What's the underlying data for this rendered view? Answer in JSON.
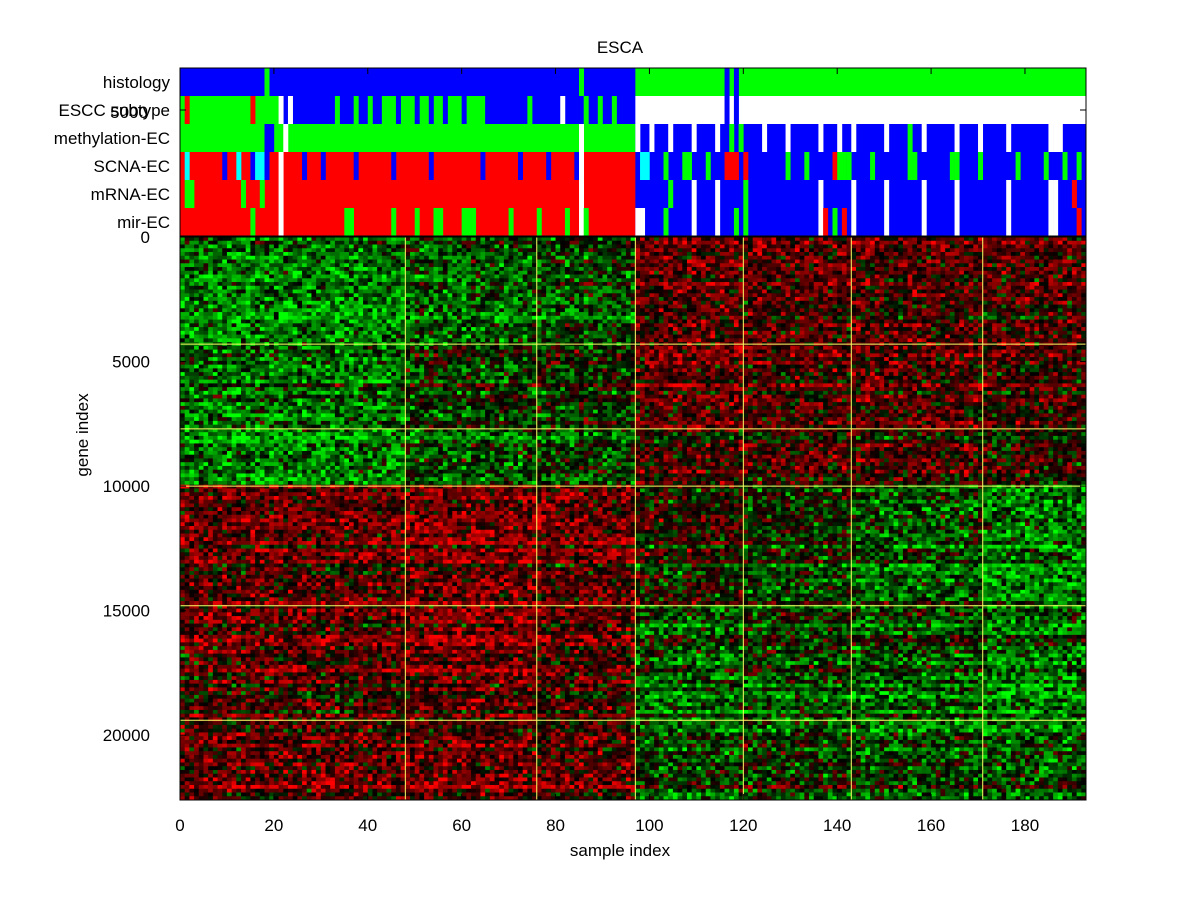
{
  "chart_data": {
    "type": "heatmap",
    "title": "ESCA",
    "xlabel": "sample index",
    "ylabel": "gene index",
    "xlim": [
      0,
      193
    ],
    "ylim": [
      0,
      22600
    ],
    "y_reversed": true,
    "grid": false,
    "x_ticks": [
      0,
      20,
      40,
      60,
      80,
      100,
      120,
      140,
      160,
      180
    ],
    "y_ticks": [
      0,
      5000,
      10000,
      15000,
      20000
    ],
    "stray_tick_label": "5000",
    "cluster_boundaries": [
      48,
      76,
      97,
      120,
      143,
      171
    ],
    "gene_boundaries": [
      4300,
      7700,
      10000,
      14800,
      19400
    ],
    "annotation_tracks": [
      {
        "name": "histology",
        "segments": [
          {
            "from": 0,
            "to": 97,
            "color": "#0000ff"
          },
          {
            "from": 97,
            "to": 193,
            "color": "#00ff00"
          }
        ],
        "specks": [
          {
            "at": 18.5,
            "color": "#00ff00"
          },
          {
            "at": 85.5,
            "color": "#00ff00"
          },
          {
            "at": 116.5,
            "color": "#0000ff"
          },
          {
            "at": 118.5,
            "color": "#0000ff"
          }
        ]
      },
      {
        "name": "ESCC subtype",
        "segments": [
          {
            "from": 0,
            "to": 16,
            "color": "#00ff00"
          },
          {
            "from": 16,
            "to": 22,
            "color": "#00ff00"
          },
          {
            "from": 22,
            "to": 34,
            "color": "#0000ff"
          },
          {
            "from": 34,
            "to": 44,
            "color": "#0000ff"
          },
          {
            "from": 44,
            "to": 65,
            "color": "#00ff00"
          },
          {
            "from": 65,
            "to": 97,
            "color": "#0000ff"
          },
          {
            "from": 97,
            "to": 193,
            "color": "#ffffff"
          }
        ],
        "specks": [
          {
            "at": 1.5,
            "color": "#ff0000"
          },
          {
            "at": 15.5,
            "color": "#ff0000"
          },
          {
            "at": 19.5,
            "color": "#00ff00"
          },
          {
            "at": 21.5,
            "color": "#ffffff"
          },
          {
            "at": 23.5,
            "color": "#ffffff"
          },
          {
            "at": 33.5,
            "color": "#00ff00"
          },
          {
            "at": 37.5,
            "color": "#00ff00"
          },
          {
            "at": 40.5,
            "color": "#00ff00"
          },
          {
            "at": 43.5,
            "color": "#00ff00"
          },
          {
            "at": 46.5,
            "color": "#0000ff"
          },
          {
            "at": 50.5,
            "color": "#0000ff"
          },
          {
            "at": 53.5,
            "color": "#0000ff"
          },
          {
            "at": 56.5,
            "color": "#0000ff"
          },
          {
            "at": 60.5,
            "color": "#0000ff"
          },
          {
            "at": 74.5,
            "color": "#00ff00"
          },
          {
            "at": 81.5,
            "color": "#ffffff"
          },
          {
            "at": 86.5,
            "color": "#00ff00"
          },
          {
            "at": 89.5,
            "color": "#00ff00"
          },
          {
            "at": 92.5,
            "color": "#00ff00"
          },
          {
            "at": 116.5,
            "color": "#0000ff"
          },
          {
            "at": 118.5,
            "color": "#0000ff"
          }
        ]
      },
      {
        "name": "methylation-EC",
        "segments": [
          {
            "from": 0,
            "to": 97,
            "color": "#00ff00"
          },
          {
            "from": 97,
            "to": 193,
            "color": "#0000ff"
          }
        ],
        "specks": [
          {
            "at": 18.5,
            "color": "#0000ff"
          },
          {
            "at": 19.5,
            "color": "#0000ff"
          },
          {
            "at": 22.5,
            "color": "#ffffff"
          },
          {
            "at": 85.5,
            "color": "#ffffff"
          },
          {
            "at": 97.5,
            "color": "#ffffff"
          },
          {
            "at": 100.5,
            "color": "#ffffff"
          },
          {
            "at": 104.5,
            "color": "#ffffff"
          },
          {
            "at": 109.5,
            "color": "#ffffff"
          },
          {
            "at": 114.5,
            "color": "#ffffff"
          },
          {
            "at": 117.5,
            "color": "#00ff00"
          },
          {
            "at": 119.5,
            "color": "#00ff00"
          },
          {
            "at": 124.5,
            "color": "#ffffff"
          },
          {
            "at": 129.5,
            "color": "#ffffff"
          },
          {
            "at": 136.5,
            "color": "#ffffff"
          },
          {
            "at": 140.5,
            "color": "#ffffff"
          },
          {
            "at": 143.5,
            "color": "#ffffff"
          },
          {
            "at": 150.5,
            "color": "#ffffff"
          },
          {
            "at": 155.5,
            "color": "#00ff00"
          },
          {
            "at": 158.5,
            "color": "#ffffff"
          },
          {
            "at": 165.5,
            "color": "#ffffff"
          },
          {
            "at": 170.5,
            "color": "#ffffff"
          },
          {
            "at": 176.5,
            "color": "#ffffff"
          },
          {
            "at": 185.5,
            "color": "#ffffff"
          },
          {
            "at": 186.5,
            "color": "#ffffff"
          },
          {
            "at": 187.5,
            "color": "#ffffff"
          }
        ]
      },
      {
        "name": "SCNA-EC",
        "segments": [
          {
            "from": 0,
            "to": 97,
            "color": "#ff0000"
          },
          {
            "from": 97,
            "to": 193,
            "color": "#0000ff"
          }
        ],
        "specks": [
          {
            "at": 1.5,
            "color": "#00ffff"
          },
          {
            "at": 9.5,
            "color": "#0000ff"
          },
          {
            "at": 12.5,
            "color": "#00ffff"
          },
          {
            "at": 15.5,
            "color": "#0000ff"
          },
          {
            "at": 16.5,
            "color": "#00ffff"
          },
          {
            "at": 17.5,
            "color": "#00ffff"
          },
          {
            "at": 18.5,
            "color": "#0000ff"
          },
          {
            "at": 21.5,
            "color": "#ffffff"
          },
          {
            "at": 26.5,
            "color": "#0000ff"
          },
          {
            "at": 30.5,
            "color": "#0000ff"
          },
          {
            "at": 37.5,
            "color": "#0000ff"
          },
          {
            "at": 45.5,
            "color": "#0000ff"
          },
          {
            "at": 53.5,
            "color": "#0000ff"
          },
          {
            "at": 64.5,
            "color": "#0000ff"
          },
          {
            "at": 72.5,
            "color": "#0000ff"
          },
          {
            "at": 78.5,
            "color": "#0000ff"
          },
          {
            "at": 84.5,
            "color": "#0000ff"
          },
          {
            "at": 85.5,
            "color": "#ffffff"
          },
          {
            "at": 98.5,
            "color": "#00ffff"
          },
          {
            "at": 99.5,
            "color": "#00ffff"
          },
          {
            "at": 103.5,
            "color": "#00ff00"
          },
          {
            "at": 107.5,
            "color": "#00ff00"
          },
          {
            "at": 108.5,
            "color": "#00ff00"
          },
          {
            "at": 112.5,
            "color": "#00ff00"
          },
          {
            "at": 116.5,
            "color": "#ff0000"
          },
          {
            "at": 117.5,
            "color": "#ff0000"
          },
          {
            "at": 118.5,
            "color": "#ff0000"
          },
          {
            "at": 120.5,
            "color": "#ff0000"
          },
          {
            "at": 129.5,
            "color": "#00ff00"
          },
          {
            "at": 133.5,
            "color": "#00ff00"
          },
          {
            "at": 139.5,
            "color": "#ff0000"
          },
          {
            "at": 140.5,
            "color": "#00ff00"
          },
          {
            "at": 141.5,
            "color": "#00ff00"
          },
          {
            "at": 142.5,
            "color": "#00ff00"
          },
          {
            "at": 147.5,
            "color": "#00ff00"
          },
          {
            "at": 155.5,
            "color": "#00ff00"
          },
          {
            "at": 156.5,
            "color": "#00ff00"
          },
          {
            "at": 164.5,
            "color": "#00ff00"
          },
          {
            "at": 165.5,
            "color": "#00ff00"
          },
          {
            "at": 170.5,
            "color": "#00ff00"
          },
          {
            "at": 178.5,
            "color": "#00ff00"
          },
          {
            "at": 184.5,
            "color": "#00ff00"
          },
          {
            "at": 188.5,
            "color": "#00ff00"
          },
          {
            "at": 191.5,
            "color": "#00ff00"
          }
        ]
      },
      {
        "name": "mRNA-EC",
        "segments": [
          {
            "from": 0,
            "to": 97,
            "color": "#ff0000"
          },
          {
            "from": 97,
            "to": 193,
            "color": "#0000ff"
          }
        ],
        "specks": [
          {
            "at": 1.5,
            "color": "#00ff00"
          },
          {
            "at": 2.5,
            "color": "#00ff00"
          },
          {
            "at": 13.5,
            "color": "#00ff00"
          },
          {
            "at": 17.5,
            "color": "#00ff00"
          },
          {
            "at": 21.5,
            "color": "#ffffff"
          },
          {
            "at": 85.5,
            "color": "#ffffff"
          },
          {
            "at": 104.5,
            "color": "#00ff00"
          },
          {
            "at": 109.5,
            "color": "#ffffff"
          },
          {
            "at": 114.5,
            "color": "#ffffff"
          },
          {
            "at": 120.5,
            "color": "#00ff00"
          },
          {
            "at": 136.5,
            "color": "#ffffff"
          },
          {
            "at": 143.5,
            "color": "#ffffff"
          },
          {
            "at": 150.5,
            "color": "#ffffff"
          },
          {
            "at": 158.5,
            "color": "#ffffff"
          },
          {
            "at": 165.5,
            "color": "#ffffff"
          },
          {
            "at": 176.5,
            "color": "#ffffff"
          },
          {
            "at": 185.5,
            "color": "#ffffff"
          },
          {
            "at": 186.5,
            "color": "#ffffff"
          },
          {
            "at": 190.5,
            "color": "#ff0000"
          }
        ]
      },
      {
        "name": "mir-EC",
        "segments": [
          {
            "from": 0,
            "to": 97,
            "color": "#ff0000"
          },
          {
            "from": 97,
            "to": 193,
            "color": "#0000ff"
          }
        ],
        "specks": [
          {
            "at": 15.5,
            "color": "#00ff00"
          },
          {
            "at": 21.5,
            "color": "#ffffff"
          },
          {
            "at": 35.5,
            "color": "#00ff00"
          },
          {
            "at": 36.5,
            "color": "#00ff00"
          },
          {
            "at": 45.5,
            "color": "#00ff00"
          },
          {
            "at": 50.5,
            "color": "#00ff00"
          },
          {
            "at": 54.5,
            "color": "#00ff00"
          },
          {
            "at": 55.5,
            "color": "#00ff00"
          },
          {
            "at": 60.5,
            "color": "#00ff00"
          },
          {
            "at": 61.5,
            "color": "#00ff00"
          },
          {
            "at": 62.5,
            "color": "#00ff00"
          },
          {
            "at": 70.5,
            "color": "#00ff00"
          },
          {
            "at": 76.5,
            "color": "#00ff00"
          },
          {
            "at": 82.5,
            "color": "#00ff00"
          },
          {
            "at": 85.5,
            "color": "#ffffff"
          },
          {
            "at": 86.5,
            "color": "#00ff00"
          },
          {
            "at": 97.5,
            "color": "#ffffff"
          },
          {
            "at": 98.5,
            "color": "#ffffff"
          },
          {
            "at": 103.5,
            "color": "#00ff00"
          },
          {
            "at": 109.5,
            "color": "#ffffff"
          },
          {
            "at": 114.5,
            "color": "#ffffff"
          },
          {
            "at": 118.5,
            "color": "#00ff00"
          },
          {
            "at": 120.5,
            "color": "#00ff00"
          },
          {
            "at": 136.5,
            "color": "#ffffff"
          },
          {
            "at": 137.5,
            "color": "#ff0000"
          },
          {
            "at": 139.5,
            "color": "#00ff00"
          },
          {
            "at": 141.5,
            "color": "#ff0000"
          },
          {
            "at": 143.5,
            "color": "#ffffff"
          },
          {
            "at": 150.5,
            "color": "#ffffff"
          },
          {
            "at": 158.5,
            "color": "#ffffff"
          },
          {
            "at": 165.5,
            "color": "#ffffff"
          },
          {
            "at": 176.5,
            "color": "#ffffff"
          },
          {
            "at": 185.5,
            "color": "#ffffff"
          },
          {
            "at": 186.5,
            "color": "#ffffff"
          },
          {
            "at": 191.5,
            "color": "#ff0000"
          }
        ]
      }
    ],
    "heatmap_pattern": {
      "color_low": "#00ff00",
      "color_mid": "#000000",
      "color_high": "#ff0000",
      "sample_blocks": [
        {
          "from": 0,
          "to": 48,
          "gene_bias": [
            -0.55,
            -0.45,
            -0.5,
            0.35,
            0.3,
            0.35
          ]
        },
        {
          "from": 48,
          "to": 76,
          "gene_bias": [
            -0.35,
            -0.2,
            -0.3,
            0.45,
            0.45,
            0.4
          ]
        },
        {
          "from": 76,
          "to": 97,
          "gene_bias": [
            -0.25,
            -0.1,
            -0.2,
            0.35,
            0.3,
            0.3
          ]
        },
        {
          "from": 97,
          "to": 120,
          "gene_bias": [
            0.35,
            0.35,
            0.25,
            0.05,
            -0.35,
            -0.25
          ]
        },
        {
          "from": 120,
          "to": 143,
          "gene_bias": [
            0.3,
            0.25,
            0.25,
            -0.15,
            -0.2,
            -0.15
          ]
        },
        {
          "from": 143,
          "to": 171,
          "gene_bias": [
            0.3,
            0.25,
            0.25,
            -0.35,
            -0.3,
            -0.25
          ]
        },
        {
          "from": 171,
          "to": 193,
          "gene_bias": [
            0.3,
            0.2,
            0.15,
            -0.55,
            -0.45,
            -0.35
          ]
        }
      ]
    },
    "colors": {
      "boundary_line": "#ffff66",
      "frame": "#000000"
    }
  }
}
